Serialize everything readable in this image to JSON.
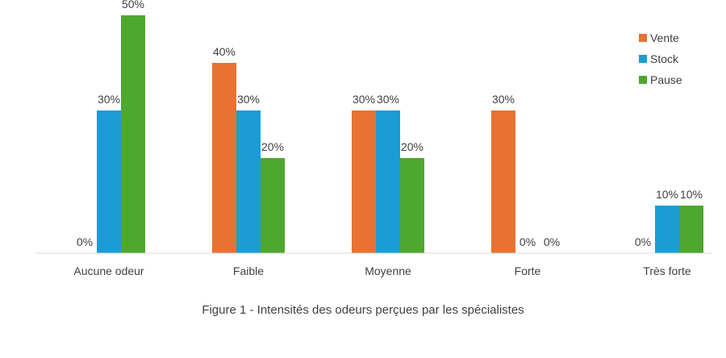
{
  "chart_data": {
    "type": "bar",
    "categories": [
      "Aucune odeur",
      "Faible",
      "Moyenne",
      "Forte",
      "Très forte"
    ],
    "series": [
      {
        "name": "Vente",
        "color": "#E97132",
        "values": [
          0,
          40,
          30,
          30,
          0
        ]
      },
      {
        "name": "Stock",
        "color": "#1B9CD6",
        "values": [
          30,
          30,
          30,
          0,
          10
        ]
      },
      {
        "name": "Pause",
        "color": "#4EA72E",
        "values": [
          50,
          20,
          20,
          0,
          10
        ]
      }
    ],
    "value_format": "percent",
    "ylim": [
      0,
      50
    ],
    "grid": false,
    "legend_position": "top-right"
  },
  "caption": "Figure 1 - Intensités des odeurs perçues par les spécialistes"
}
